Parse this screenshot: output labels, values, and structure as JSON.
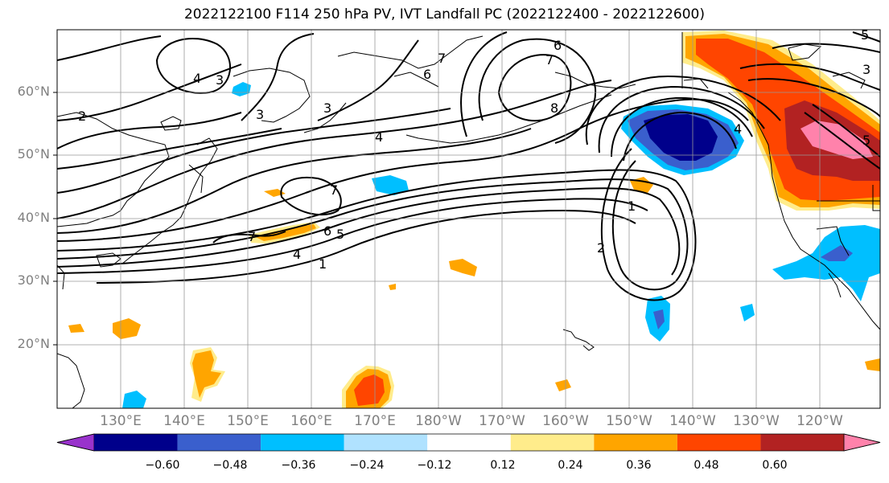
{
  "title": "2022122100 F114 250 hPa PV, IVT Landfall PC (2022122400 - 2022122600)",
  "lat_labels": [
    "60°N",
    "50°N",
    "40°N",
    "30°N",
    "20°N"
  ],
  "lon_labels": [
    "130°E",
    "140°E",
    "150°E",
    "160°E",
    "170°E",
    "180°W",
    "170°W",
    "160°W",
    "150°W",
    "140°W",
    "130°W",
    "120°W"
  ],
  "colorbar": {
    "ticks": [
      "−0.60",
      "−0.48",
      "−0.36",
      "−0.24",
      "−0.12",
      "0.12",
      "0.24",
      "0.36",
      "0.48",
      "0.60"
    ],
    "colors": [
      "#9932cc",
      "#00008b",
      "#3a5fcd",
      "#00bfff",
      "#b0e2ff",
      "#ffffff",
      "#ffec8b",
      "#ffa500",
      "#ff4500",
      "#b22222",
      "#ff82ab"
    ]
  },
  "contour_labels": [
    "2",
    "3",
    "4",
    "3",
    "3",
    "4",
    "7",
    "6",
    "8",
    "7",
    "6",
    "5",
    "4",
    "1",
    "7",
    "6",
    "5",
    "4",
    "1",
    "2",
    "3",
    "5"
  ]
}
